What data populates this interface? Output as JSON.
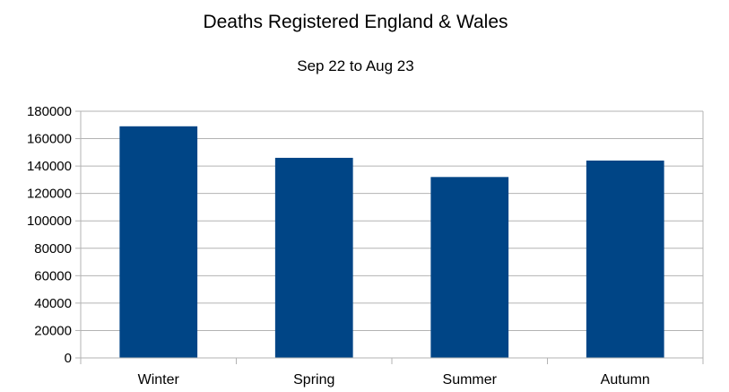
{
  "chart_data": {
    "type": "bar",
    "title": "Deaths Registered England & Wales",
    "subtitle": "Sep 22 to Aug 23",
    "xlabel": "",
    "ylabel": "",
    "categories": [
      "Winter",
      "Spring",
      "Summer",
      "Autumn"
    ],
    "values": [
      169000,
      146000,
      132000,
      144000
    ],
    "ylim": [
      0,
      180000
    ],
    "yticks": [
      "0",
      "20000",
      "40000",
      "60000",
      "80000",
      "100000",
      "120000",
      "140000",
      "160000",
      "180000"
    ],
    "grid": true,
    "legend": "none",
    "bar_color": "#004586",
    "grid_color": "#b3b3b3"
  }
}
